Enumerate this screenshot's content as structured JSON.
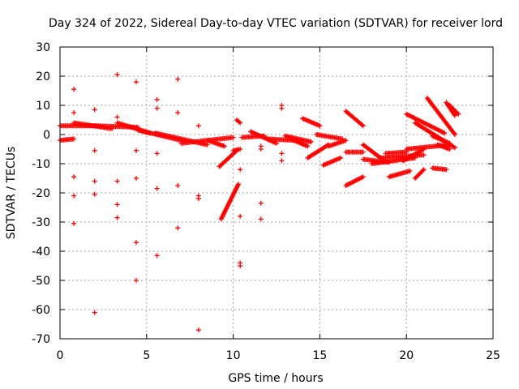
{
  "chart_data": {
    "type": "scatter",
    "title": "Day 324 of 2022, Sidereal Day-to-day VTEC variation (SDTVAR) for receiver lord",
    "xlabel": "GPS time / hours",
    "ylabel": "SDTVAR / TECUs",
    "xlim": [
      0,
      25
    ],
    "ylim": [
      -70,
      30
    ],
    "xticks": [
      0,
      5,
      10,
      15,
      20,
      25
    ],
    "yticks": [
      30,
      20,
      10,
      0,
      -10,
      -20,
      -30,
      -40,
      -50,
      -60,
      -70
    ],
    "grid": true,
    "marker": "+",
    "color": "#ff0000",
    "segments": [
      {
        "x0": 0.0,
        "y0": -2.0,
        "x1": 0.8,
        "y1": -1.5
      },
      {
        "x0": 0.0,
        "y0": 3.0,
        "x1": 2.0,
        "y1": 3.0
      },
      {
        "x0": 0.8,
        "y0": 4.0,
        "x1": 3.0,
        "y1": 2.0
      },
      {
        "x0": 2.0,
        "y0": 3.0,
        "x1": 4.5,
        "y1": 2.5
      },
      {
        "x0": 3.3,
        "y0": 4.0,
        "x1": 5.2,
        "y1": 0.5
      },
      {
        "x0": 4.5,
        "y0": 1.5,
        "x1": 7.0,
        "y1": -2.0
      },
      {
        "x0": 5.5,
        "y0": 0.5,
        "x1": 8.5,
        "y1": -3.5
      },
      {
        "x0": 7.0,
        "y0": -3.0,
        "x1": 10.0,
        "y1": -1.0
      },
      {
        "x0": 8.5,
        "y0": -2.0,
        "x1": 9.5,
        "y1": -4.0
      },
      {
        "x0": 9.3,
        "y0": -29.0,
        "x1": 10.3,
        "y1": -17.0
      },
      {
        "x0": 9.2,
        "y0": -11.0,
        "x1": 10.2,
        "y1": -5.5
      },
      {
        "x0": 10.0,
        "y0": -5.5,
        "x1": 10.4,
        "y1": -5.0
      },
      {
        "x0": 10.2,
        "y0": 5.0,
        "x1": 10.4,
        "y1": 4.0
      },
      {
        "x0": 10.5,
        "y0": -1.0,
        "x1": 11.8,
        "y1": -0.5
      },
      {
        "x0": 11.0,
        "y0": 1.0,
        "x1": 12.5,
        "y1": -3.0
      },
      {
        "x0": 12.0,
        "y0": -1.5,
        "x1": 13.5,
        "y1": -2.0
      },
      {
        "x0": 13.0,
        "y0": -0.5,
        "x1": 14.5,
        "y1": -2.5
      },
      {
        "x0": 13.5,
        "y0": -2.0,
        "x1": 14.3,
        "y1": -4.0
      },
      {
        "x0": 14.0,
        "y0": 5.5,
        "x1": 15.0,
        "y1": 3.0
      },
      {
        "x0": 14.8,
        "y0": 0.0,
        "x1": 16.3,
        "y1": -1.5
      },
      {
        "x0": 14.3,
        "y0": -8.0,
        "x1": 15.5,
        "y1": -3.5
      },
      {
        "x0": 15.5,
        "y0": -4.0,
        "x1": 16.5,
        "y1": -2.0
      },
      {
        "x0": 15.2,
        "y0": -10.5,
        "x1": 16.2,
        "y1": -8.0
      },
      {
        "x0": 16.5,
        "y0": 8.0,
        "x1": 17.5,
        "y1": 3.0
      },
      {
        "x0": 16.5,
        "y0": -6.0,
        "x1": 17.5,
        "y1": -6.0
      },
      {
        "x0": 16.5,
        "y0": -17.5,
        "x1": 17.5,
        "y1": -14.5
      },
      {
        "x0": 17.5,
        "y0": -3.5,
        "x1": 18.5,
        "y1": -8.0
      },
      {
        "x0": 17.5,
        "y0": -8.5,
        "x1": 19.0,
        "y1": -9.5
      },
      {
        "x0": 18.0,
        "y0": -10.0,
        "x1": 20.5,
        "y1": -8.0
      },
      {
        "x0": 18.5,
        "y0": -8.0,
        "x1": 21.0,
        "y1": -7.0
      },
      {
        "x0": 18.8,
        "y0": -6.5,
        "x1": 20.0,
        "y1": -6.0
      },
      {
        "x0": 19.0,
        "y0": -14.5,
        "x1": 20.2,
        "y1": -12.5
      },
      {
        "x0": 20.5,
        "y0": -15.0,
        "x1": 21.0,
        "y1": -12.0
      },
      {
        "x0": 19.8,
        "y0": -9.0,
        "x1": 21.0,
        "y1": -5.0
      },
      {
        "x0": 20.0,
        "y0": -5.0,
        "x1": 22.5,
        "y1": -3.5
      },
      {
        "x0": 20.0,
        "y0": 7.0,
        "x1": 22.2,
        "y1": 0.5
      },
      {
        "x0": 20.5,
        "y0": 4.0,
        "x1": 22.8,
        "y1": -4.5
      },
      {
        "x0": 21.5,
        "y0": -0.5,
        "x1": 22.5,
        "y1": -3.0
      },
      {
        "x0": 21.8,
        "y0": -3.5,
        "x1": 22.5,
        "y1": -5.0
      },
      {
        "x0": 21.2,
        "y0": 12.5,
        "x1": 22.8,
        "y1": 0.0
      },
      {
        "x0": 21.5,
        "y0": -11.5,
        "x1": 22.3,
        "y1": -12.0
      },
      {
        "x0": 22.3,
        "y0": 11.0,
        "x1": 22.8,
        "y1": 6.5
      },
      {
        "x0": 22.5,
        "y0": 10.0,
        "x1": 23.0,
        "y1": 7.0
      }
    ],
    "points": [
      {
        "x": 0.8,
        "y": 15.5
      },
      {
        "x": 0.8,
        "y": 7.5
      },
      {
        "x": 0.8,
        "y": -14.5
      },
      {
        "x": 0.8,
        "y": -21.0
      },
      {
        "x": 0.8,
        "y": -30.5
      },
      {
        "x": 2.0,
        "y": 8.5
      },
      {
        "x": 2.0,
        "y": -5.5
      },
      {
        "x": 2.0,
        "y": -16.0
      },
      {
        "x": 2.0,
        "y": -20.5
      },
      {
        "x": 2.0,
        "y": -61.0
      },
      {
        "x": 3.3,
        "y": 20.5
      },
      {
        "x": 3.3,
        "y": 6.0
      },
      {
        "x": 3.3,
        "y": -16.0
      },
      {
        "x": 3.3,
        "y": -24.0
      },
      {
        "x": 3.3,
        "y": -28.5
      },
      {
        "x": 4.4,
        "y": 18.0
      },
      {
        "x": 4.4,
        "y": -5.5
      },
      {
        "x": 4.4,
        "y": -15.0
      },
      {
        "x": 4.4,
        "y": -37.0
      },
      {
        "x": 4.4,
        "y": -50.0
      },
      {
        "x": 5.6,
        "y": 12.0
      },
      {
        "x": 5.6,
        "y": 9.0
      },
      {
        "x": 5.6,
        "y": -6.5
      },
      {
        "x": 5.6,
        "y": -18.5
      },
      {
        "x": 5.6,
        "y": -41.5
      },
      {
        "x": 6.8,
        "y": 19.0
      },
      {
        "x": 6.8,
        "y": 7.5
      },
      {
        "x": 6.8,
        "y": -17.5
      },
      {
        "x": 6.8,
        "y": -32.0
      },
      {
        "x": 8.0,
        "y": 3.0
      },
      {
        "x": 8.0,
        "y": -21.0
      },
      {
        "x": 8.0,
        "y": -22.0
      },
      {
        "x": 8.0,
        "y": -67.0
      },
      {
        "x": 10.4,
        "y": -12.0
      },
      {
        "x": 10.4,
        "y": -28.0
      },
      {
        "x": 10.4,
        "y": -44.0
      },
      {
        "x": 10.4,
        "y": -45.0
      },
      {
        "x": 11.6,
        "y": -4.0
      },
      {
        "x": 11.6,
        "y": -5.0
      },
      {
        "x": 11.6,
        "y": -23.5
      },
      {
        "x": 11.6,
        "y": -29.0
      },
      {
        "x": 12.8,
        "y": 10.0
      },
      {
        "x": 12.8,
        "y": 9.0
      },
      {
        "x": 12.8,
        "y": -6.5
      },
      {
        "x": 12.8,
        "y": -9.0
      }
    ]
  }
}
